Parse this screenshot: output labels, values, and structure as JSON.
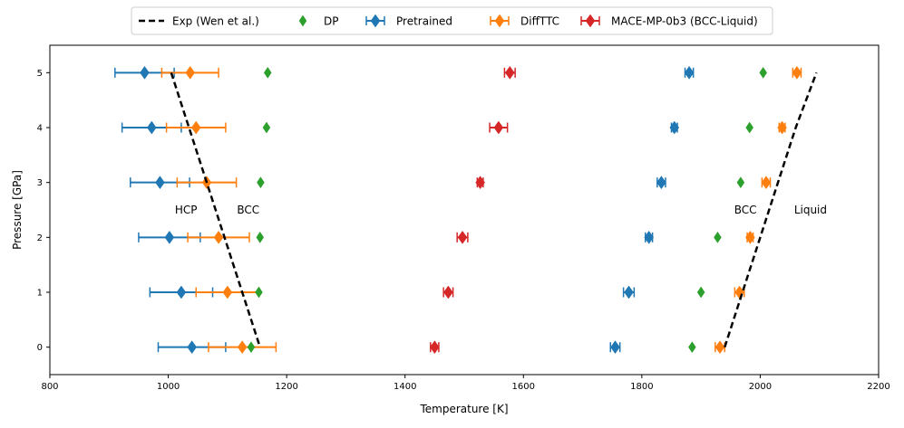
{
  "chart_data": {
    "type": "scatter",
    "xlabel": "Temperature [K]",
    "ylabel": "Pressure [GPa]",
    "xlim": [
      800,
      2200
    ],
    "ylim": [
      -0.5,
      5.5
    ],
    "xticks": [
      800,
      1000,
      1200,
      1400,
      1600,
      1800,
      2000,
      2200
    ],
    "yticks": [
      0,
      1,
      2,
      3,
      4,
      5
    ],
    "legend_position": "top-center",
    "annotations": [
      {
        "text": "HCP",
        "x": 1030,
        "y": 2.5
      },
      {
        "text": "BCC",
        "x": 1135,
        "y": 2.5
      },
      {
        "text": "BCC",
        "x": 1975,
        "y": 2.5
      },
      {
        "text": "Liquid",
        "x": 2085,
        "y": 2.5
      }
    ],
    "series": [
      {
        "name": "Exp (Wen et al.)",
        "kind": "dashed-line",
        "color": "#000000",
        "segments": [
          {
            "x": [
              1005,
              1155
            ],
            "y": [
              5,
              0
            ]
          },
          {
            "x": [
              1940,
              1970,
              2000,
              2030,
              2060,
              2095
            ],
            "y": [
              0,
              1,
              2,
              3,
              4,
              5
            ]
          }
        ]
      },
      {
        "name": "DP",
        "kind": "marker",
        "color": "#2ca02c",
        "points": [
          {
            "x": [
              1140,
              1885
            ],
            "y": 0
          },
          {
            "x": [
              1153,
              1900
            ],
            "y": 1
          },
          {
            "x": [
              1155,
              1928
            ],
            "y": 2
          },
          {
            "x": [
              1156,
              1967
            ],
            "y": 3
          },
          {
            "x": [
              1166,
              1982
            ],
            "y": 4
          },
          {
            "x": [
              1168,
              2005
            ],
            "y": 5
          }
        ]
      },
      {
        "name": "Pretrained",
        "kind": "errorbar",
        "color": "#1f77b4",
        "points": [
          {
            "x": 1040,
            "err": 57,
            "y": 0
          },
          {
            "x": 1022,
            "err": 53,
            "y": 1
          },
          {
            "x": 1002,
            "err": 52,
            "y": 2
          },
          {
            "x": 986,
            "err": 50,
            "y": 3
          },
          {
            "x": 972,
            "err": 50,
            "y": 4
          },
          {
            "x": 960,
            "err": 50,
            "y": 5
          },
          {
            "x": 1755,
            "err": 8,
            "y": 0
          },
          {
            "x": 1778,
            "err": 9,
            "y": 1
          },
          {
            "x": 1812,
            "err": 6,
            "y": 2
          },
          {
            "x": 1833,
            "err": 7,
            "y": 3
          },
          {
            "x": 1855,
            "err": 5,
            "y": 4
          },
          {
            "x": 1880,
            "err": 7,
            "y": 5
          }
        ]
      },
      {
        "name": "DiffTTC",
        "kind": "errorbar",
        "color": "#ff7f0e",
        "points": [
          {
            "x": 1125,
            "err": 57,
            "y": 0
          },
          {
            "x": 1100,
            "err": 53,
            "y": 1
          },
          {
            "x": 1085,
            "err": 52,
            "y": 2
          },
          {
            "x": 1065,
            "err": 50,
            "y": 3
          },
          {
            "x": 1047,
            "err": 50,
            "y": 4
          },
          {
            "x": 1037,
            "err": 48,
            "y": 5
          },
          {
            "x": 1932,
            "err": 8,
            "y": 0
          },
          {
            "x": 1965,
            "err": 8,
            "y": 1
          },
          {
            "x": 1983,
            "err": 5,
            "y": 2
          },
          {
            "x": 2010,
            "err": 7,
            "y": 3
          },
          {
            "x": 2037,
            "err": 5,
            "y": 4
          },
          {
            "x": 2062,
            "err": 7,
            "y": 5
          }
        ]
      },
      {
        "name": "MACE-MP-0b3 (BCC-Liquid)",
        "kind": "errorbar",
        "color": "#d62728",
        "points": [
          {
            "x": 1450,
            "err": 7,
            "y": 0
          },
          {
            "x": 1473,
            "err": 8,
            "y": 1
          },
          {
            "x": 1497,
            "err": 9,
            "y": 2
          },
          {
            "x": 1527,
            "err": 5,
            "y": 3
          },
          {
            "x": 1558,
            "err": 15,
            "y": 4
          },
          {
            "x": 1577,
            "err": 9,
            "y": 5
          }
        ]
      }
    ]
  }
}
